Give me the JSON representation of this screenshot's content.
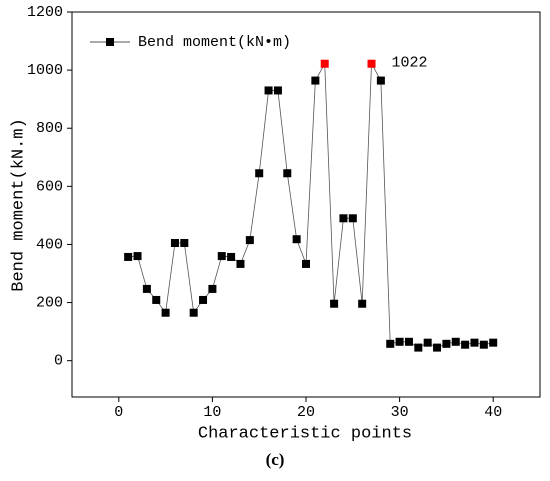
{
  "chart_data": {
    "type": "line",
    "caption": "(c)",
    "x_label": "Characteristic points",
    "y_label": "Bend moment(kN.m)",
    "x": [
      1,
      2,
      3,
      4,
      5,
      6,
      7,
      8,
      9,
      10,
      11,
      12,
      13,
      14,
      15,
      16,
      17,
      18,
      19,
      20,
      21,
      22,
      23,
      24,
      25,
      26,
      27,
      28,
      29,
      30,
      31,
      32,
      33,
      34,
      35,
      36,
      37,
      38,
      39,
      40
    ],
    "series": [
      {
        "name": "Bend moment(kN•m)",
        "color": "#000000",
        "line_color": "#555555",
        "values": [
          357,
          360,
          247,
          209,
          165,
          405,
          405,
          165,
          209,
          247,
          360,
          357,
          333,
          415,
          645,
          930,
          930,
          645,
          418,
          333,
          964,
          1022,
          196,
          490,
          490,
          196,
          1022,
          964,
          58,
          65,
          65,
          45,
          62,
          45,
          58,
          65,
          55,
          62,
          55,
          62
        ],
        "marker_colors": [
          "#000000",
          "#000000",
          "#000000",
          "#000000",
          "#000000",
          "#000000",
          "#000000",
          "#000000",
          "#000000",
          "#000000",
          "#000000",
          "#000000",
          "#000000",
          "#000000",
          "#000000",
          "#000000",
          "#000000",
          "#000000",
          "#000000",
          "#000000",
          "#000000",
          "#ff0000",
          "#000000",
          "#000000",
          "#000000",
          "#000000",
          "#ff0000",
          "#000000",
          "#000000",
          "#000000",
          "#000000",
          "#000000",
          "#000000",
          "#000000",
          "#000000",
          "#000000",
          "#000000",
          "#000000",
          "#000000",
          "#000000"
        ]
      }
    ],
    "annotations": [
      {
        "text": "1022"
      }
    ],
    "xlim": [
      -5,
      45
    ],
    "xticks": [
      0,
      10,
      20,
      30,
      40
    ],
    "ylim": [
      -125,
      1200
    ],
    "yticks": [
      0,
      200,
      400,
      600,
      800,
      1000,
      1200
    ],
    "legend": "top-left"
  }
}
